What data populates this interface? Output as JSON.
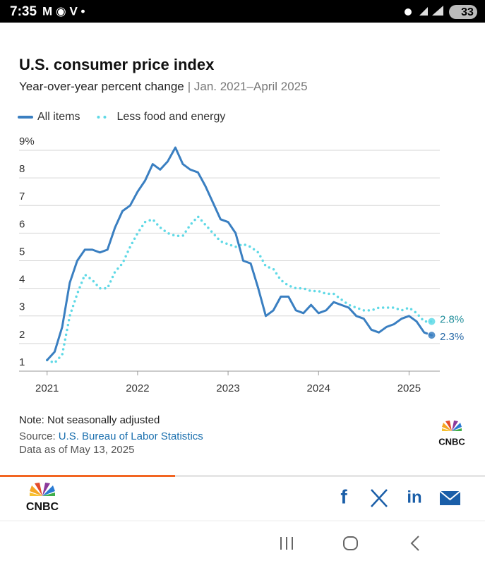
{
  "status_bar": {
    "time": "7:35",
    "battery": "33"
  },
  "chart_data": {
    "type": "line",
    "title": "U.S. consumer price index",
    "subtitle": "Year-over-year percent change",
    "date_range": "| Jan. 2021–April 2025",
    "x": [
      2021,
      2021.083,
      2021.167,
      2021.25,
      2021.333,
      2021.417,
      2021.5,
      2021.583,
      2021.667,
      2021.75,
      2021.833,
      2021.917,
      2022,
      2022.083,
      2022.167,
      2022.25,
      2022.333,
      2022.417,
      2022.5,
      2022.583,
      2022.667,
      2022.75,
      2022.833,
      2022.917,
      2023,
      2023.083,
      2023.167,
      2023.25,
      2023.333,
      2023.417,
      2023.5,
      2023.583,
      2023.667,
      2023.75,
      2023.833,
      2023.917,
      2024,
      2024.083,
      2024.167,
      2024.25,
      2024.333,
      2024.417,
      2024.5,
      2024.583,
      2024.667,
      2024.75,
      2024.833,
      2024.917,
      2025,
      2025.083,
      2025.167,
      2025.25
    ],
    "series": [
      {
        "name": "All items",
        "color": "#3a7fc1",
        "style": "solid",
        "values": [
          1.4,
          1.7,
          2.6,
          4.2,
          5.0,
          5.4,
          5.4,
          5.3,
          5.4,
          6.2,
          6.8,
          7.0,
          7.5,
          7.9,
          8.5,
          8.3,
          8.6,
          9.1,
          8.5,
          8.3,
          8.2,
          7.7,
          7.1,
          6.5,
          6.4,
          6.0,
          5.0,
          4.9,
          4.0,
          3.0,
          3.2,
          3.7,
          3.7,
          3.2,
          3.1,
          3.4,
          3.1,
          3.2,
          3.5,
          3.4,
          3.3,
          3.0,
          2.9,
          2.5,
          2.4,
          2.6,
          2.7,
          2.9,
          3.0,
          2.8,
          2.4,
          2.3
        ],
        "value_labels": [
          null,
          null,
          null,
          null,
          null,
          null,
          null,
          null,
          null,
          null,
          null,
          null,
          null,
          null,
          null,
          null,
          null,
          null,
          null,
          null,
          null,
          null,
          null,
          null,
          null,
          null,
          null,
          null,
          null,
          null,
          null,
          null,
          null,
          null,
          null,
          null,
          null,
          null,
          null,
          null,
          null,
          null,
          null,
          null,
          null,
          null,
          null,
          null,
          null,
          null,
          null,
          "2.3%"
        ]
      },
      {
        "name": "Less food and energy",
        "color": "#5fd9e6",
        "style": "dotted",
        "values": [
          1.4,
          1.3,
          1.6,
          3.0,
          3.8,
          4.5,
          4.3,
          4.0,
          4.0,
          4.6,
          4.9,
          5.5,
          6.0,
          6.4,
          6.5,
          6.2,
          6.0,
          5.9,
          5.9,
          6.3,
          6.6,
          6.3,
          6.0,
          5.7,
          5.6,
          5.5,
          5.6,
          5.5,
          5.3,
          4.8,
          4.7,
          4.3,
          4.1,
          4.0,
          4.0,
          3.9,
          3.9,
          3.8,
          3.8,
          3.6,
          3.4,
          3.3,
          3.2,
          3.2,
          3.3,
          3.3,
          3.3,
          3.2,
          3.3,
          3.1,
          2.8,
          2.8
        ],
        "value_labels": [
          null,
          null,
          null,
          null,
          null,
          null,
          null,
          null,
          null,
          null,
          null,
          null,
          null,
          null,
          null,
          null,
          null,
          null,
          null,
          null,
          null,
          null,
          null,
          null,
          null,
          null,
          null,
          null,
          null,
          null,
          null,
          null,
          null,
          null,
          null,
          null,
          null,
          null,
          null,
          null,
          null,
          null,
          null,
          null,
          null,
          null,
          null,
          null,
          null,
          null,
          null,
          "2.8%"
        ]
      }
    ],
    "xlim": [
      2020.69,
      2025.34
    ],
    "xticks": [
      2021,
      2022,
      2023,
      2024,
      2025
    ],
    "ylim": [
      1,
      9
    ],
    "yticks": [
      1,
      2,
      3,
      4,
      5,
      6,
      7,
      8,
      {
        "value": 9,
        "label": "9%"
      }
    ],
    "grid": true,
    "legend": "top-left",
    "note": "Note: Not seasonally adjusted",
    "source_label": "Source:",
    "source": "U.S. Bureau of Labor Statistics",
    "data_as_of": "Data as of May 13, 2025"
  },
  "logo": "CNBC"
}
